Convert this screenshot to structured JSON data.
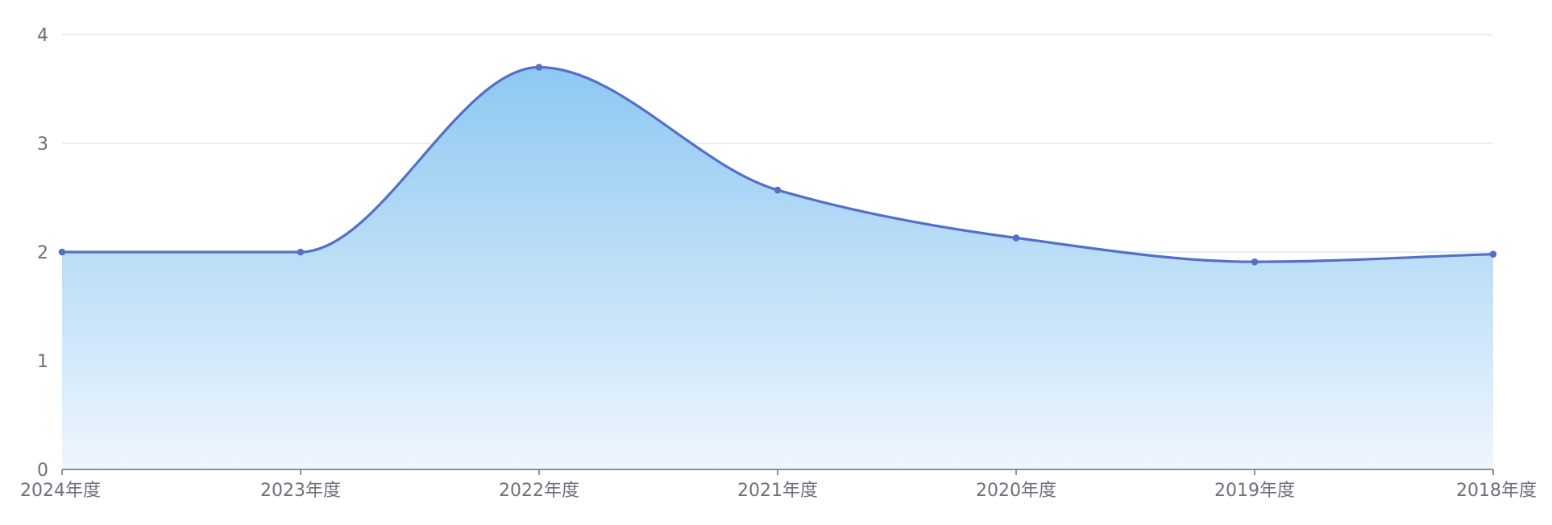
{
  "chart_data": {
    "type": "area",
    "title": "",
    "xlabel": "",
    "ylabel": "",
    "categories": [
      "2024年度",
      "2023年度",
      "2022年度",
      "2021年度",
      "2020年度",
      "2019年度",
      "2018年度"
    ],
    "series": [
      {
        "values": [
          2.0,
          2.0,
          3.7,
          2.57,
          2.13,
          1.91,
          1.98
        ]
      }
    ],
    "ylim": [
      0,
      4
    ],
    "yticks": [
      "0",
      "1",
      "2",
      "3",
      "4"
    ],
    "grid": true,
    "smooth": true,
    "legend": "none",
    "colors": {
      "line": "#5470c6",
      "area_top": "#8ec8f2",
      "area_bottom": "#eef6fd",
      "grid": "#e0e6f1",
      "axis": "#6e7079"
    }
  }
}
